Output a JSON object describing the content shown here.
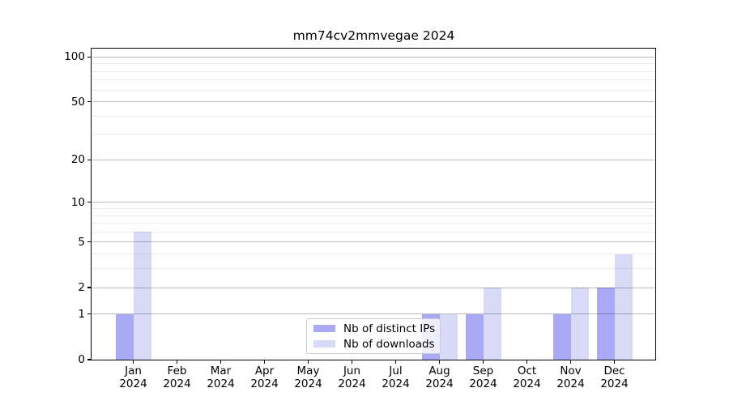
{
  "figure": {
    "background": "#ffffff"
  },
  "chart_data": {
    "type": "bar",
    "title": "mm74cv2mmvegae 2024",
    "categories": [
      "Jan 2024",
      "Feb 2024",
      "Mar 2024",
      "Apr 2024",
      "May 2024",
      "Jun 2024",
      "Jul 2024",
      "Aug 2024",
      "Sep 2024",
      "Oct 2024",
      "Nov 2024",
      "Dec 2024"
    ],
    "series": [
      {
        "name": "Nb of distinct IPs",
        "color": "#a9a9f5",
        "values": [
          1,
          0,
          0,
          0,
          0,
          0,
          0,
          1,
          1,
          0,
          1,
          2
        ]
      },
      {
        "name": "Nb of downloads",
        "color": "#d9d9f8",
        "values": [
          6,
          0,
          0,
          0,
          0,
          0,
          0,
          1,
          2,
          0,
          2,
          4
        ]
      }
    ],
    "xlabel": "",
    "ylabel": "",
    "yscale": "log1p",
    "ylim": [
      0,
      113
    ],
    "yticks": [
      0,
      1,
      2,
      5,
      10,
      20,
      50,
      100
    ],
    "minor_gridlines": [
      3,
      4,
      6,
      7,
      8,
      9,
      30,
      40,
      60,
      70,
      80,
      90
    ],
    "grid": "on",
    "legend_position": "lower-center"
  }
}
